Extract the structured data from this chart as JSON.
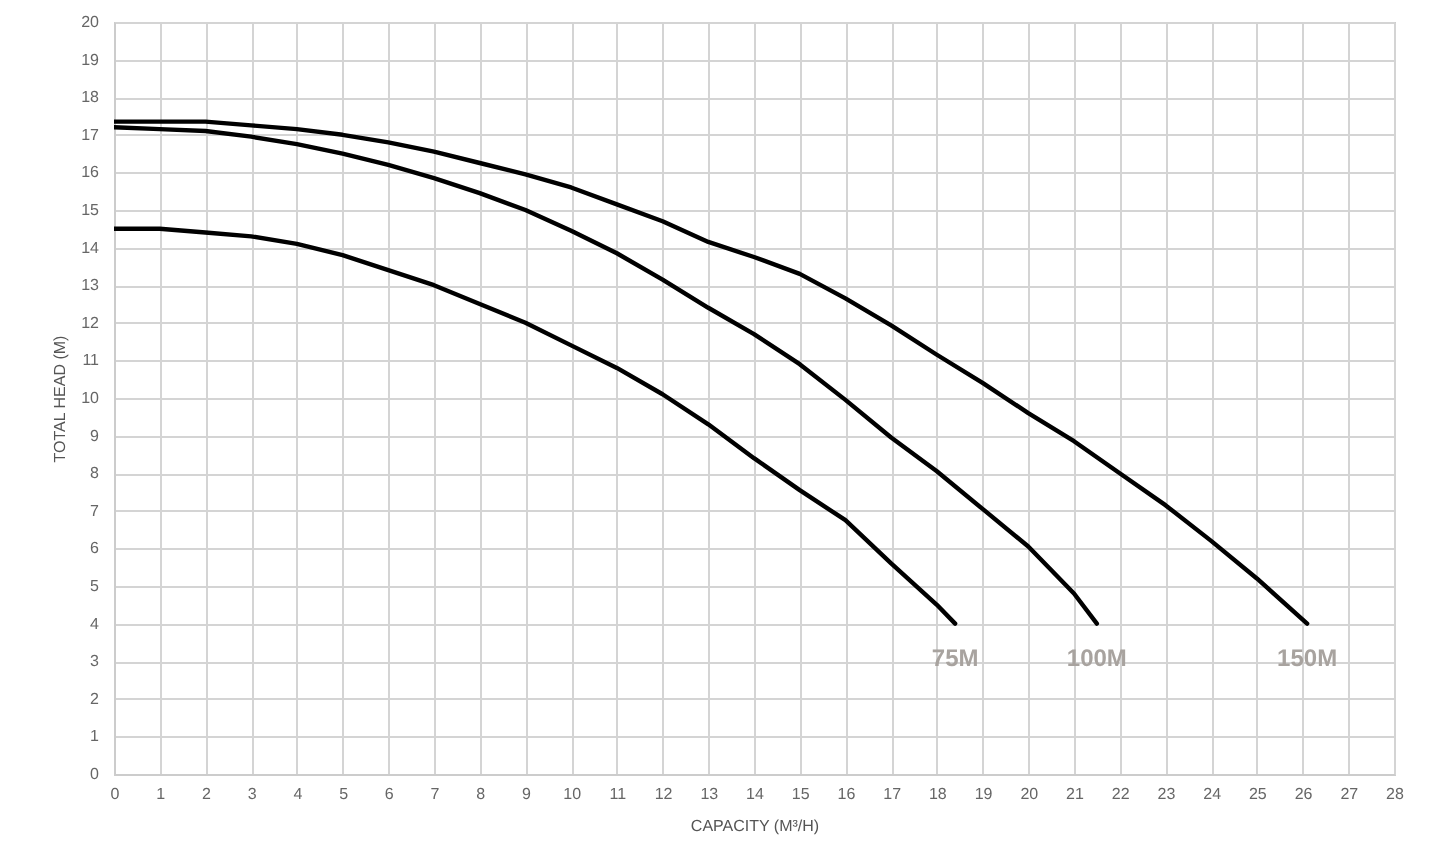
{
  "chart_data": {
    "type": "line",
    "xlabel": "CAPACITY (M³/H)",
    "ylabel": "TOTAL HEAD (M)",
    "xlim": [
      0,
      28
    ],
    "xticks": [
      0,
      1,
      2,
      3,
      4,
      5,
      6,
      7,
      8,
      9,
      10,
      11,
      12,
      13,
      14,
      15,
      16,
      17,
      18,
      19,
      20,
      21,
      22,
      23,
      24,
      25,
      26,
      27,
      28
    ],
    "ylim": [
      0,
      20
    ],
    "yticks": [
      0,
      1,
      2,
      3,
      4,
      5,
      6,
      7,
      8,
      9,
      10,
      11,
      12,
      13,
      14,
      15,
      16,
      17,
      18,
      19,
      20
    ],
    "grid": true,
    "marker": "none",
    "line_style": "solid",
    "legend": false,
    "series": [
      {
        "name": "75M",
        "color": "#000000",
        "x": [
          0,
          1,
          2,
          3,
          4,
          5,
          6,
          7,
          8,
          9,
          10,
          11,
          12,
          13,
          14,
          15,
          16,
          17,
          18,
          18.4
        ],
        "values": [
          14.5,
          14.5,
          14.4,
          14.3,
          14.1,
          13.8,
          13.4,
          13.0,
          12.5,
          12.0,
          11.4,
          10.8,
          10.1,
          9.3,
          8.4,
          7.55,
          6.75,
          5.6,
          4.5,
          4.0
        ]
      },
      {
        "name": "100M",
        "color": "#000000",
        "x": [
          0,
          1,
          2,
          3,
          4,
          5,
          6,
          7,
          8,
          9,
          10,
          11,
          12,
          13,
          14,
          15,
          16,
          17,
          18,
          19,
          20,
          21,
          21.5
        ],
        "values": [
          17.2,
          17.15,
          17.1,
          16.95,
          16.75,
          16.5,
          16.2,
          15.85,
          15.45,
          15.0,
          14.45,
          13.85,
          13.15,
          12.4,
          11.7,
          10.9,
          9.95,
          8.95,
          8.05,
          7.05,
          6.05,
          4.8,
          4.0
        ]
      },
      {
        "name": "150M",
        "color": "#000000",
        "x": [
          0,
          1,
          2,
          3,
          4,
          5,
          6,
          7,
          8,
          9,
          10,
          11,
          12,
          13,
          14,
          15,
          16,
          17,
          18,
          19,
          20,
          21,
          22,
          23,
          24,
          25,
          26.1
        ],
        "values": [
          17.35,
          17.35,
          17.35,
          17.25,
          17.15,
          17.0,
          16.8,
          16.55,
          16.25,
          15.95,
          15.6,
          15.15,
          14.7,
          14.15,
          13.75,
          13.3,
          12.65,
          11.93,
          11.15,
          10.4,
          9.6,
          8.85,
          8.0,
          7.15,
          6.2,
          5.2,
          4.0
        ]
      }
    ]
  }
}
